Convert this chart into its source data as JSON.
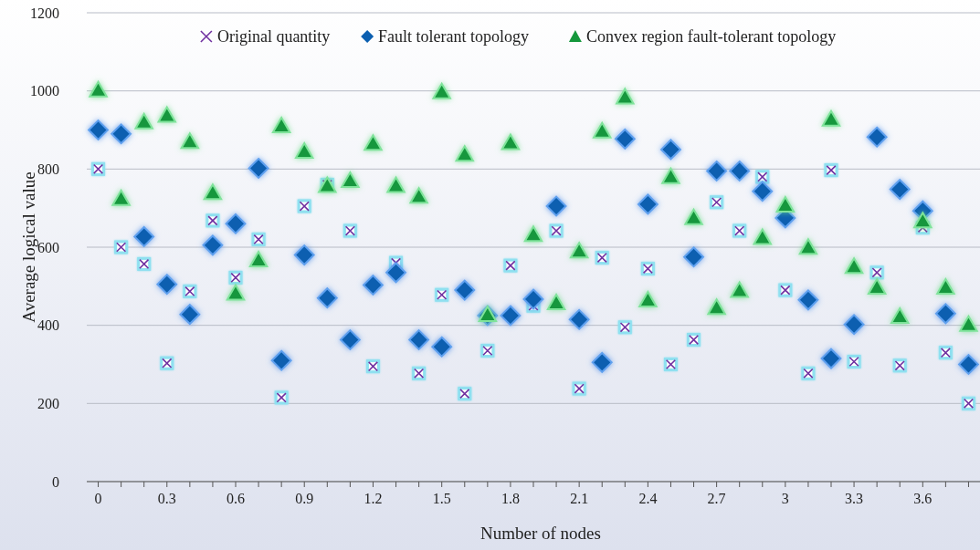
{
  "chart_data": {
    "type": "scatter",
    "xlabel": "Number of nodes",
    "ylabel": "Average logical value",
    "legend": "top",
    "grid": "y",
    "x": [
      0,
      0.1,
      0.2,
      0.3,
      0.4,
      0.5,
      0.6,
      0.7,
      0.8,
      0.9,
      1.0,
      1.1,
      1.2,
      1.3,
      1.4,
      1.5,
      1.6,
      1.7,
      1.8,
      1.9,
      2.0,
      2.1,
      2.2,
      2.3,
      2.4,
      2.5,
      2.6,
      2.7,
      2.8,
      2.9,
      3.0,
      3.1,
      3.2,
      3.3,
      3.4,
      3.5,
      3.6,
      3.7,
      3.8
    ],
    "xlim": [
      -0.05,
      3.85
    ],
    "xticks": [
      0,
      {
        "value": 0.1,
        "label": null
      },
      {
        "value": 0.2,
        "label": null
      },
      0.3,
      {
        "value": 0.4,
        "label": null
      },
      {
        "value": 0.5,
        "label": null
      },
      0.6,
      {
        "value": 0.7,
        "label": null
      },
      {
        "value": 0.8,
        "label": null
      },
      0.9,
      {
        "value": 1.0,
        "label": null
      },
      {
        "value": 1.1,
        "label": null
      },
      1.2,
      {
        "value": 1.3,
        "label": null
      },
      {
        "value": 1.4,
        "label": null
      },
      1.5,
      {
        "value": 1.6,
        "label": null
      },
      {
        "value": 1.7,
        "label": null
      },
      1.8,
      {
        "value": 1.9,
        "label": null
      },
      {
        "value": 2.0,
        "label": null
      },
      2.1,
      {
        "value": 2.2,
        "label": null
      },
      {
        "value": 2.3,
        "label": null
      },
      2.4,
      {
        "value": 2.5,
        "label": null
      },
      {
        "value": 2.6,
        "label": null
      },
      2.7,
      {
        "value": 2.8,
        "label": null
      },
      {
        "value": 2.9,
        "label": null
      },
      {
        "value": 3,
        "label": "3"
      },
      {
        "value": 3.1,
        "label": null
      },
      {
        "value": 3.2,
        "label": null
      },
      3.3,
      {
        "value": 3.4,
        "label": null
      },
      {
        "value": 3.5,
        "label": null
      },
      3.6,
      {
        "value": 3.7,
        "label": null
      },
      {
        "value": 3.8,
        "label": null
      }
    ],
    "ylim": [
      0,
      1200
    ],
    "yticks": [
      0,
      200,
      400,
      600,
      800,
      1000,
      1200
    ],
    "series": [
      {
        "name": "Original quantity",
        "color": "#7030a0",
        "marker": "cross",
        "values": [
          800,
          600,
          557,
          303,
          487,
          668,
          522,
          620,
          215,
          705,
          760,
          642,
          295,
          560,
          277,
          478,
          225,
          335,
          553,
          450,
          642,
          238,
          573,
          395,
          545,
          300,
          363,
          715,
          642,
          780,
          490,
          277,
          797,
          307,
          535,
          297,
          650,
          330,
          200
        ]
      },
      {
        "name": "Fault tolerant topology",
        "color": "#0b5fb0",
        "marker": "diamond",
        "values": [
          900,
          890,
          627,
          505,
          428,
          605,
          660,
          802,
          310,
          580,
          470,
          363,
          503,
          535,
          363,
          345,
          490,
          425,
          425,
          467,
          705,
          415,
          305,
          877,
          710,
          850,
          575,
          795,
          795,
          743,
          675,
          465,
          315,
          402,
          882,
          748,
          693,
          430,
          300
        ]
      },
      {
        "name": "Convex region fault-tolerant topology",
        "color": "#15973c",
        "marker": "triangle",
        "values": [
          1000,
          722,
          918,
          935,
          868,
          737,
          480,
          565,
          908,
          843,
          755,
          768,
          863,
          755,
          728,
          995,
          835,
          425,
          865,
          630,
          455,
          588,
          895,
          982,
          462,
          778,
          673,
          443,
          487,
          622,
          705,
          597,
          925,
          548,
          495,
          420,
          665,
          495,
          400
        ]
      }
    ]
  }
}
